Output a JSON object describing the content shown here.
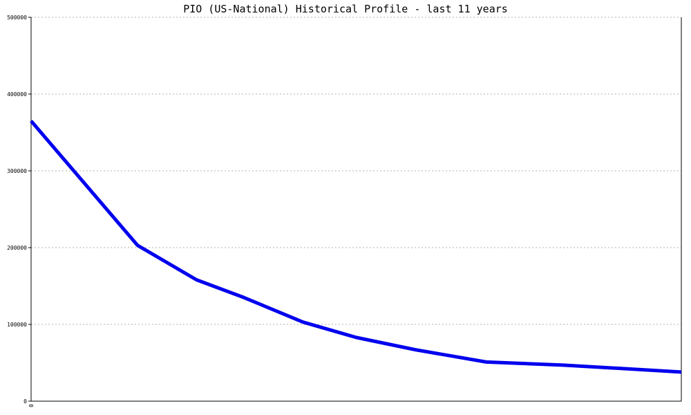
{
  "chart_data": {
    "type": "line",
    "title": "PIO (US-National) Historical Profile - last 11 years",
    "xlabel": "",
    "ylabel": "",
    "ylim": [
      0,
      500000
    ],
    "yticks": [
      0,
      100000,
      200000,
      300000,
      400000,
      500000
    ],
    "ytick_labels": [
      "0",
      "100000",
      "200000",
      "300000",
      "400000",
      "500000"
    ],
    "xticks": [
      0
    ],
    "xtick_labels": [
      "0"
    ],
    "xlim": [
      0,
      11
    ],
    "grid": true,
    "series": [
      {
        "color": "#0000ee",
        "x": [
          0,
          1.8,
          2.8,
          3.6,
          4.6,
          5.5,
          6.5,
          7.7,
          9,
          11
        ],
        "values": [
          365000,
          203000,
          158000,
          135000,
          103000,
          83000,
          67000,
          51000,
          47000,
          38000
        ]
      }
    ]
  }
}
